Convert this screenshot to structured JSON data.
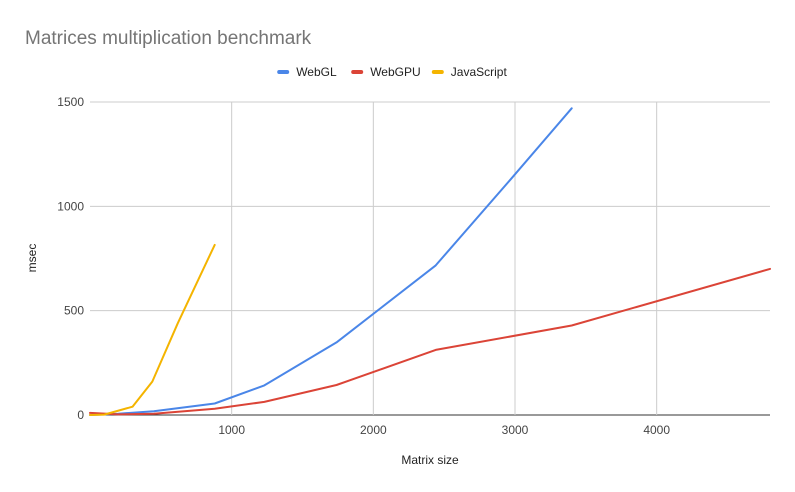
{
  "chart_data": {
    "type": "line",
    "title": "Matrices multiplication benchmark",
    "xlabel": "Matrix size",
    "ylabel": "msec",
    "xlim": [
      0,
      4800
    ],
    "ylim": [
      0,
      1500
    ],
    "xticks": [
      1000,
      2000,
      3000,
      4000
    ],
    "yticks": [
      0,
      500,
      1000,
      1500
    ],
    "grid": true,
    "legend_position": "top",
    "series": [
      {
        "name": "WebGL",
        "color": "#4a86e8",
        "points": [
          [
            0,
            0
          ],
          [
            200,
            6
          ],
          [
            450,
            18
          ],
          [
            880,
            55
          ],
          [
            1230,
            142
          ],
          [
            1740,
            348
          ],
          [
            2440,
            717
          ],
          [
            2970,
            1130
          ],
          [
            3400,
            1470
          ]
        ]
      },
      {
        "name": "WebGPU",
        "color": "#db4437",
        "points": [
          [
            0,
            10
          ],
          [
            200,
            3
          ],
          [
            450,
            6
          ],
          [
            880,
            30
          ],
          [
            1230,
            63
          ],
          [
            1740,
            144
          ],
          [
            2440,
            312
          ],
          [
            3400,
            429
          ],
          [
            4800,
            700
          ]
        ]
      },
      {
        "name": "JavaScript",
        "color": "#f4b400",
        "points": [
          [
            0,
            0
          ],
          [
            100,
            2
          ],
          [
            300,
            40
          ],
          [
            440,
            160
          ],
          [
            620,
            440
          ],
          [
            880,
            815
          ]
        ]
      }
    ]
  }
}
